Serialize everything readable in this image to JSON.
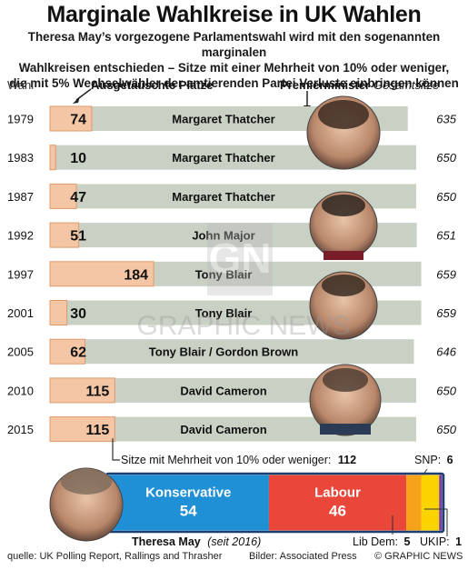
{
  "title": "Marginale Wahlkreise in UK Wahlen",
  "subtitle_lines": [
    "Theresa May’s vorgezogene Parlamentswahl wird mit den sogenannten marginalen",
    "Wahlkreisen entschieden – Sitze mit einer Mehrheit von 10% oder weniger,",
    "die mit 5% Wechselwähler der amtierenden Partei Verluste einbringen können"
  ],
  "headers": {
    "year": "Wahl",
    "changed_seats": "Ausgetauschte Plätze",
    "pm": "Premierminister",
    "total": "Gesamtsitze"
  },
  "chart_data": {
    "type": "bar",
    "categories": [
      "1979",
      "1983",
      "1987",
      "1992",
      "1997",
      "2001",
      "2005",
      "2010",
      "2015"
    ],
    "values": [
      74,
      10,
      47,
      51,
      184,
      30,
      62,
      115,
      115
    ],
    "pm": [
      "Margaret Thatcher",
      "Margaret Thatcher",
      "Margaret Thatcher",
      "John Major",
      "Tony Blair",
      "Tony Blair",
      "Tony Blair / Gordon Brown",
      "David Cameron",
      "David Cameron"
    ],
    "total_seats": [
      635,
      650,
      650,
      651,
      659,
      659,
      646,
      650,
      650
    ],
    "xlim": [
      0,
      650
    ],
    "colors": {
      "changed": "#f5c6a5",
      "changed_border": "#e09a6a",
      "track": "#c9d0c4"
    }
  },
  "marginal": {
    "label": "Sitze mit Mehrheit von 10% oder weniger:",
    "total": "112",
    "parties": [
      {
        "name": "Konservative",
        "value": 54,
        "color": "#1f8fd6"
      },
      {
        "name": "Labour",
        "value": 46,
        "color": "#e8473a"
      },
      {
        "name": "Lib Dem",
        "value": 5,
        "color": "#f7a21b"
      },
      {
        "name": "SNP",
        "value": 6,
        "color": "#fbd400"
      },
      {
        "name": "UKIP",
        "value": 1,
        "color": "#7b3fa0"
      }
    ],
    "lib_dem_label": "Lib Dem:",
    "lib_dem_value": "5",
    "snp_label": "SNP:",
    "snp_value": "6",
    "ukip_label": "UKIP:",
    "ukip_value": "1"
  },
  "may": {
    "name": "Theresa May",
    "since": "(seit 2016)"
  },
  "watermark": "GRAPHIC NEWS",
  "footer": {
    "source": "quelle: UK Polling Report, Rallings and Thrasher",
    "images": "Bilder: Associated Press",
    "copyright": "© GRAPHIC NEWS"
  }
}
